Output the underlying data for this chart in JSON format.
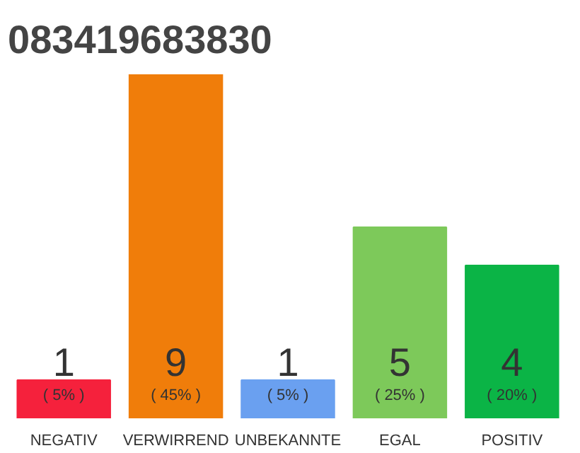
{
  "chart_data": {
    "type": "bar",
    "title": "083419683830",
    "categories": [
      "NEGATIV",
      "VERWIRREND",
      "UNBEKANNTE",
      "EGAL",
      "POSITIV"
    ],
    "values": [
      1,
      9,
      1,
      5,
      4
    ],
    "colors": [
      "#f5213c",
      "#f07d0a",
      "#6aa0f0",
      "#7dc95a",
      "#0bb446"
    ],
    "data_labels": true,
    "annotations": [
      {
        "text": "( 5% )",
        "x": "NEGATIV",
        "y": 0
      },
      {
        "text": "( 45% )",
        "x": "VERWIRREND",
        "y": 0
      },
      {
        "text": "( 5% )",
        "x": "UNBEKANNTE",
        "y": 0
      },
      {
        "text": "( 25% )",
        "x": "EGAL",
        "y": 0
      },
      {
        "text": "( 20% )",
        "x": "POSITIV",
        "y": 0
      }
    ],
    "grid": false
  }
}
